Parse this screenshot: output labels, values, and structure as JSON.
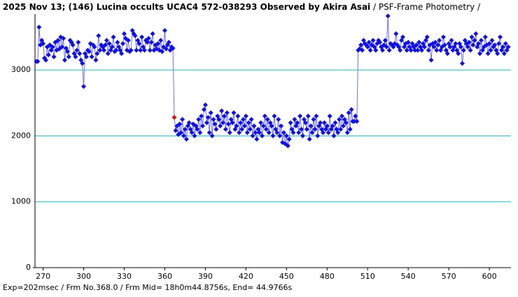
{
  "chart_data": {
    "type": "line",
    "title": "2025 Nov 13; (146) Lucina occults UCAC4 572-038293 Observed by Akira Asai",
    "subtitle": " / PSF-Frame Photometry /",
    "footer": "Exp=202msec / Frm No.368.0 / Frm Mid= 18h0m44.8756s, End= 44.9766s",
    "xlim": [
      264,
      616
    ],
    "xticks": [
      270,
      300,
      330,
      360,
      390,
      420,
      450,
      480,
      510,
      540,
      570,
      600
    ],
    "ylim": [
      0,
      3850
    ],
    "yticks": [
      0,
      1000,
      2000,
      3000
    ],
    "grid": true,
    "grid_color": "#00cccc",
    "highlight_index": 102,
    "highlight_color": "#ff0000",
    "series": [
      {
        "color": "#1010ee",
        "line_color": "#7070ff",
        "x": [
          265,
          266,
          267,
          268,
          269,
          270,
          271,
          272,
          273,
          274,
          275,
          276,
          277,
          278,
          279,
          280,
          281,
          282,
          283,
          284,
          285,
          286,
          287,
          288,
          289,
          290,
          291,
          292,
          293,
          294,
          295,
          296,
          297,
          298,
          299,
          300,
          301,
          302,
          303,
          304,
          305,
          306,
          307,
          308,
          309,
          310,
          311,
          312,
          313,
          314,
          315,
          316,
          317,
          318,
          319,
          320,
          321,
          322,
          323,
          324,
          325,
          326,
          327,
          328,
          329,
          330,
          331,
          332,
          333,
          334,
          335,
          336,
          337,
          338,
          339,
          340,
          341,
          342,
          343,
          344,
          345,
          346,
          347,
          348,
          349,
          350,
          351,
          352,
          353,
          354,
          355,
          356,
          357,
          358,
          359,
          360,
          361,
          362,
          363,
          364,
          365,
          366,
          367,
          368,
          369,
          370,
          371,
          372,
          373,
          374,
          375,
          376,
          377,
          378,
          379,
          380,
          381,
          382,
          383,
          384,
          385,
          386,
          387,
          388,
          389,
          390,
          391,
          392,
          393,
          394,
          395,
          396,
          397,
          398,
          399,
          400,
          401,
          402,
          403,
          404,
          405,
          406,
          407,
          408,
          409,
          410,
          411,
          412,
          413,
          414,
          415,
          416,
          417,
          418,
          419,
          420,
          421,
          422,
          423,
          424,
          425,
          426,
          427,
          428,
          429,
          430,
          431,
          432,
          433,
          434,
          435,
          436,
          437,
          438,
          439,
          440,
          441,
          442,
          443,
          444,
          445,
          446,
          447,
          448,
          449,
          450,
          451,
          452,
          453,
          454,
          455,
          456,
          457,
          458,
          459,
          460,
          461,
          462,
          463,
          464,
          465,
          466,
          467,
          468,
          469,
          470,
          471,
          472,
          473,
          474,
          475,
          476,
          477,
          478,
          479,
          480,
          481,
          482,
          483,
          484,
          485,
          486,
          487,
          488,
          489,
          490,
          491,
          492,
          493,
          494,
          495,
          496,
          497,
          498,
          499,
          500,
          501,
          502,
          503,
          504,
          505,
          506,
          507,
          508,
          509,
          510,
          511,
          512,
          513,
          514,
          515,
          516,
          517,
          518,
          519,
          520,
          521,
          522,
          523,
          524,
          525,
          526,
          527,
          528,
          529,
          530,
          531,
          532,
          533,
          534,
          535,
          536,
          537,
          538,
          539,
          540,
          541,
          542,
          543,
          544,
          545,
          546,
          547,
          548,
          549,
          550,
          551,
          552,
          553,
          554,
          555,
          556,
          557,
          558,
          559,
          560,
          561,
          562,
          563,
          564,
          565,
          566,
          567,
          568,
          569,
          570,
          571,
          572,
          573,
          574,
          575,
          576,
          577,
          578,
          579,
          580,
          581,
          582,
          583,
          584,
          585,
          586,
          587,
          588,
          589,
          590,
          591,
          592,
          593,
          594,
          595,
          596,
          597,
          598,
          599,
          600,
          601,
          602,
          603,
          604,
          605,
          606,
          607,
          608,
          609,
          610,
          611,
          612,
          613,
          614
        ],
        "values": [
          3130,
          3130,
          3650,
          3380,
          3450,
          3400,
          3180,
          3150,
          3350,
          3230,
          3380,
          3300,
          3350,
          3200,
          3420,
          3300,
          3450,
          3320,
          3500,
          3350,
          3480,
          3150,
          3330,
          3280,
          3200,
          3450,
          3420,
          3380,
          3250,
          3200,
          3300,
          3420,
          3250,
          3150,
          3100,
          2750,
          3250,
          3200,
          3300,
          3280,
          3400,
          3200,
          3380,
          3350,
          3150,
          3250,
          3520,
          3300,
          3380,
          3350,
          3300,
          3380,
          3450,
          3250,
          3400,
          3300,
          3350,
          3500,
          3280,
          3300,
          3420,
          3350,
          3300,
          3250,
          3400,
          3550,
          3480,
          3300,
          3450,
          3280,
          3300,
          3600,
          3550,
          3520,
          3300,
          3450,
          3400,
          3300,
          3500,
          3350,
          3300,
          3450,
          3420,
          3480,
          3300,
          3420,
          3550,
          3300,
          3380,
          3320,
          3400,
          3300,
          3450,
          3280,
          3350,
          3600,
          3320,
          3380,
          3420,
          3300,
          3350,
          3330,
          2280,
          2080,
          2150,
          2020,
          2180,
          2050,
          2250,
          2000,
          2100,
          1950,
          2150,
          2200,
          2100,
          2050,
          2180,
          2000,
          2150,
          2100,
          2250,
          2050,
          2300,
          2150,
          2400,
          2470,
          2200,
          2280,
          2050,
          2350,
          2000,
          2250,
          2180,
          2100,
          2300,
          2250,
          2150,
          2380,
          2200,
          2300,
          2100,
          2350,
          2180,
          2050,
          2250,
          2200,
          2350,
          2100,
          2150,
          2300,
          2050,
          2200,
          2100,
          2250,
          2150,
          2300,
          2050,
          2200,
          2100,
          2250,
          2000,
          2150,
          2050,
          1950,
          2100,
          2050,
          2200,
          2000,
          2150,
          2300,
          2100,
          2250,
          2050,
          2200,
          2150,
          2000,
          2300,
          2100,
          2050,
          2250,
          2000,
          2150,
          1900,
          2050,
          1880,
          2000,
          1850,
          1950,
          2200,
          2100,
          2050,
          2250,
          2150,
          2200,
          2050,
          2300,
          2100,
          2000,
          2250,
          2200,
          2100,
          2300,
          1950,
          2150,
          2050,
          2250,
          2100,
          2300,
          2000,
          2150,
          2200,
          2100,
          2050,
          2200,
          2100,
          2150,
          2050,
          2300,
          2100,
          2150,
          2000,
          2200,
          2100,
          2050,
          2250,
          2100,
          2300,
          2150,
          2250,
          2200,
          2050,
          2350,
          2100,
          2400,
          2220,
          2220,
          2300,
          2220,
          3300,
          3320,
          3380,
          3300,
          3450,
          3400,
          3380,
          3350,
          3420,
          3300,
          3380,
          3450,
          3350,
          3300,
          3400,
          3450,
          3420,
          3350,
          3300,
          3380,
          3450,
          3350,
          3820,
          3300,
          3400,
          3380,
          3350,
          3400,
          3550,
          3380,
          3350,
          3300,
          3450,
          3500,
          3350,
          3400,
          3300,
          3420,
          3350,
          3300,
          3400,
          3350,
          3300,
          3380,
          3300,
          3420,
          3350,
          3300,
          3400,
          3350,
          3450,
          3500,
          3300,
          3380,
          3150,
          3400,
          3350,
          3420,
          3300,
          3380,
          3450,
          3300,
          3350,
          3500,
          3380,
          3300,
          3250,
          3400,
          3350,
          3450,
          3300,
          3350,
          3400,
          3300,
          3250,
          3400,
          3350,
          3100,
          3300,
          3450,
          3400,
          3350,
          3420,
          3300,
          3500,
          3380,
          3450,
          3550,
          3350,
          3400,
          3250,
          3450,
          3300,
          3350,
          3500,
          3380,
          3250,
          3400,
          3300,
          3450,
          3350,
          3380,
          3300,
          3250,
          3400,
          3500,
          3300,
          3350,
          3250,
          3400,
          3300,
          3350
        ]
      }
    ]
  }
}
